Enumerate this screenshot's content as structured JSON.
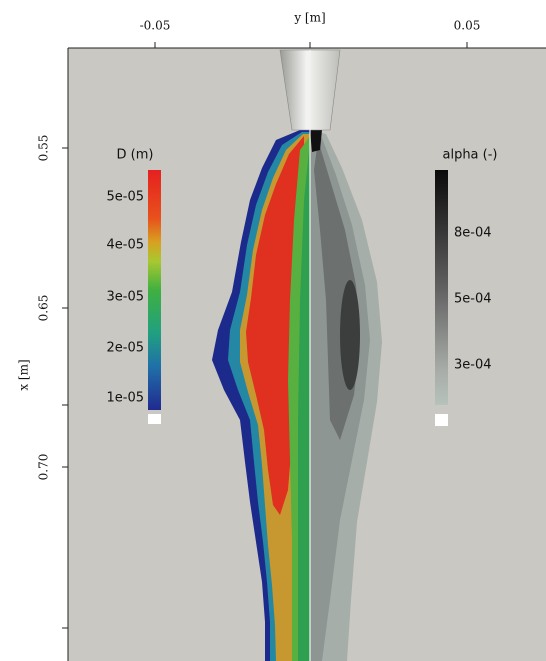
{
  "figure": {
    "top_axis": {
      "label": "y [m]",
      "ticks": [
        "-0.05",
        "0.05"
      ]
    },
    "left_axis": {
      "label": "x [m]",
      "ticks": [
        "0.55",
        "0.65",
        "0.70"
      ]
    },
    "colorbar_d": {
      "title": "D (m)",
      "labels": [
        "5e-05",
        "4e-05",
        "3e-05",
        "2e-05",
        "1e-05"
      ]
    },
    "colorbar_alpha": {
      "title": "alpha (-)",
      "labels": [
        "8e-04",
        "5e-04",
        "3e-04"
      ]
    }
  }
}
